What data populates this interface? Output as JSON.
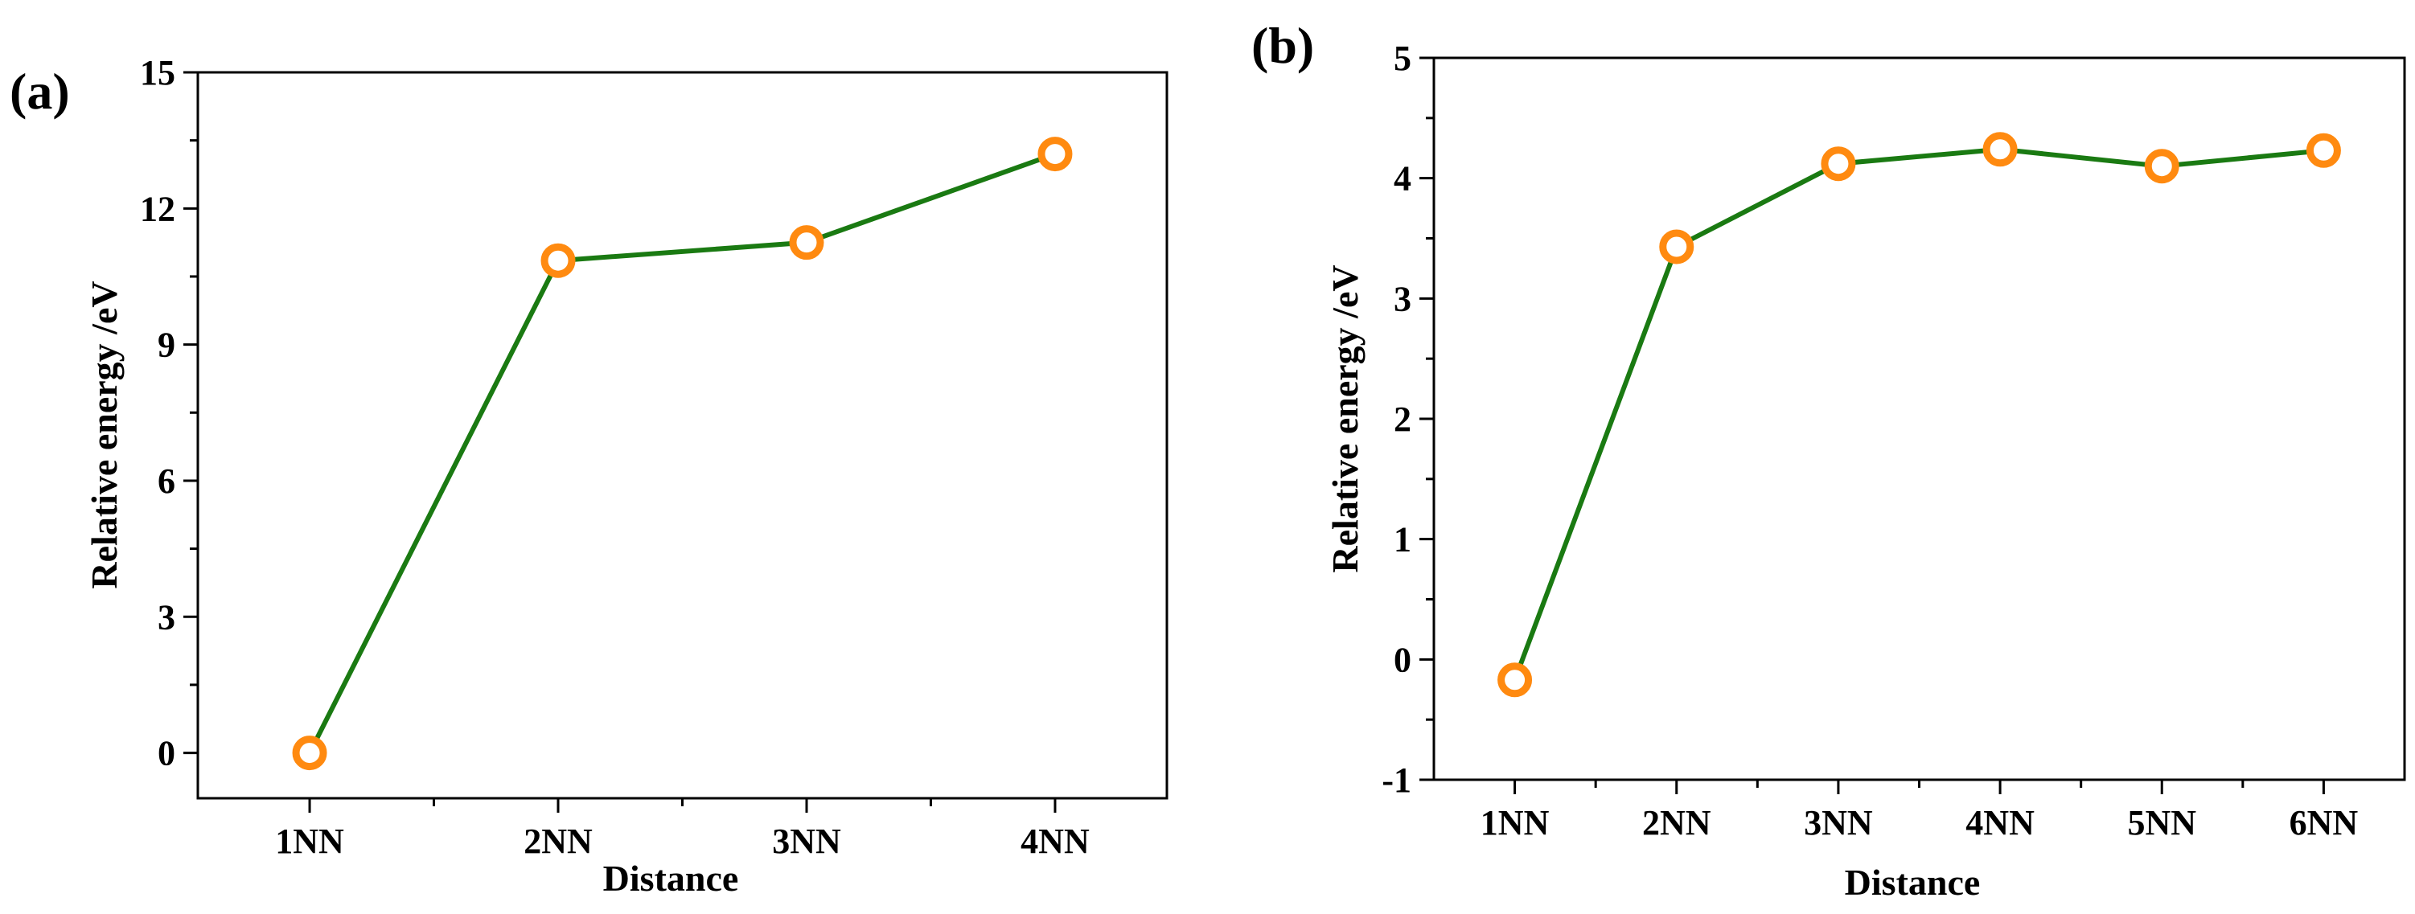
{
  "chart_data": [
    {
      "type": "line",
      "panel_label": "(a)",
      "title": "",
      "xlabel": "Distance",
      "ylabel": "Relative energy /eV",
      "categories": [
        "1NN",
        "2NN",
        "3NN",
        "4NN"
      ],
      "series": [
        {
          "name": "Relative energy",
          "values": [
            0.0,
            10.85,
            11.25,
            13.2
          ]
        }
      ],
      "ylim": [
        -1.0,
        15
      ],
      "yticks": [
        0,
        3,
        6,
        9,
        12,
        15
      ],
      "xlim": [
        0.55,
        4.45
      ],
      "colors": {
        "line": "#1a7a12",
        "marker": "#ff8a10"
      },
      "grid": false,
      "legend": "none"
    },
    {
      "type": "line",
      "panel_label": "(b)",
      "title": "",
      "xlabel": "Distance",
      "ylabel": "Relative energy /eV",
      "categories": [
        "1NN",
        "2NN",
        "3NN",
        "4NN",
        "5NN",
        "6NN"
      ],
      "series": [
        {
          "name": "Relative energy",
          "values": [
            -0.17,
            3.43,
            4.12,
            4.24,
            4.1,
            4.23
          ]
        }
      ],
      "ylim": [
        -1,
        5
      ],
      "yticks": [
        -1,
        0,
        1,
        2,
        3,
        4,
        5
      ],
      "xlim": [
        0.5,
        6.5
      ],
      "colors": {
        "line": "#1a7a12",
        "marker": "#ff8a10"
      },
      "grid": false,
      "legend": "none"
    }
  ]
}
